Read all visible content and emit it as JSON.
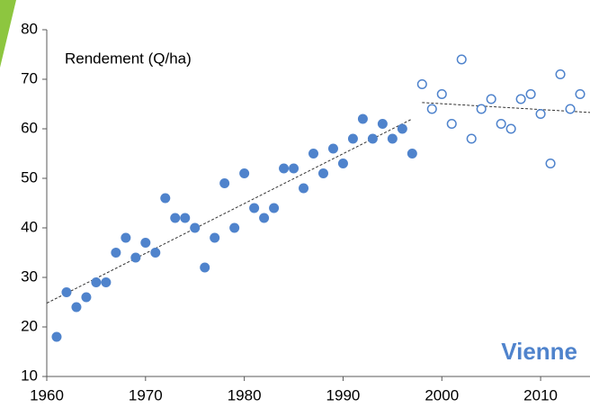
{
  "chart_data": {
    "type": "scatter",
    "annotations": {
      "y_label": "Rendement (Q/ha)",
      "place": "Vienne"
    },
    "xlim": [
      1960,
      2015
    ],
    "xticks": [
      1960,
      1970,
      1980,
      1990,
      2000,
      2010
    ],
    "ylim": [
      10,
      80
    ],
    "yticks": [
      10,
      20,
      30,
      40,
      50,
      60,
      70,
      80
    ],
    "grid": false,
    "series": [
      {
        "color": "#4f83cc",
        "marker": "filled",
        "x": [
          1961,
          1962,
          1963,
          1964,
          1965,
          1966,
          1967,
          1968,
          1969,
          1970,
          1971,
          1972,
          1973,
          1974,
          1975,
          1976,
          1977,
          1978,
          1979,
          1980,
          1981,
          1982,
          1983,
          1984,
          1985,
          1986,
          1987,
          1988,
          1989,
          1990,
          1991,
          1992,
          1993,
          1994,
          1995,
          1996,
          1997
        ],
        "values": [
          18,
          27,
          24,
          26,
          29,
          29,
          35,
          38,
          34,
          37,
          35,
          46,
          42,
          42,
          40,
          32,
          38,
          49,
          40,
          51,
          44,
          42,
          44,
          52,
          52,
          48,
          55,
          51,
          56,
          53,
          58,
          62,
          58,
          61,
          58,
          60,
          55
        ]
      },
      {
        "color": "#4f83cc",
        "marker": "open",
        "x": [
          1998,
          1999,
          2000,
          2001,
          2002,
          2003,
          2004,
          2005,
          2006,
          2007,
          2008,
          2009,
          2010,
          2011,
          2012,
          2013,
          2014
        ],
        "values": [
          69,
          64,
          67,
          61,
          74,
          58,
          64,
          66,
          61,
          60,
          66,
          67,
          63,
          53,
          71,
          64,
          67
        ]
      }
    ],
    "trendlines": [
      {
        "x": [
          1960,
          1997
        ],
        "values": [
          24.8,
          62
        ]
      },
      {
        "x": [
          1998,
          2015
        ],
        "values": [
          65.3,
          63.3
        ]
      }
    ]
  }
}
